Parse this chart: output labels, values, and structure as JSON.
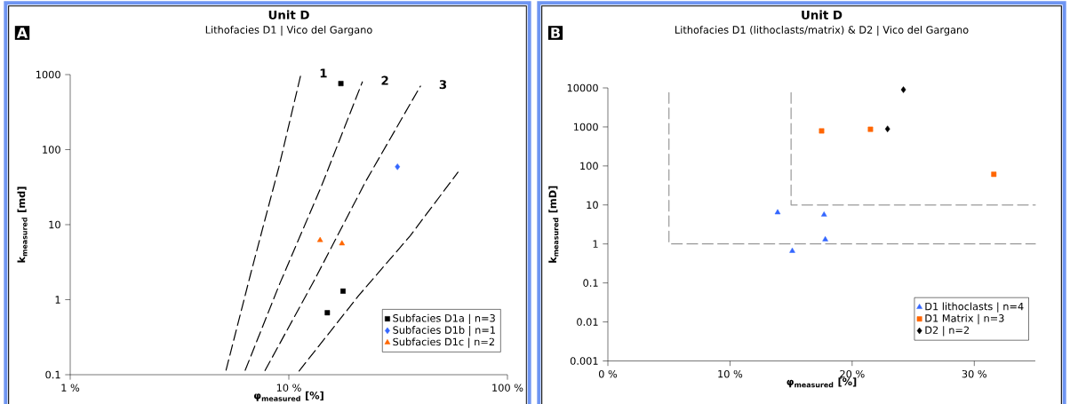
{
  "chart_data": [
    {
      "type": "scatter",
      "title": "Unit D",
      "subtitle": "Lithofacies D1 | Vico del Gargano",
      "xlabel": "φ$_{measured}$ [%]",
      "ylabel": "k$_{measured}$ [md]",
      "log": "xy",
      "xlim": [
        1,
        100
      ],
      "ylim": [
        0.1,
        1000
      ],
      "xticks": [
        {
          "value": 1,
          "label": "1 %"
        },
        {
          "value": 10,
          "label": "10 %"
        },
        {
          "value": 100,
          "label": "100 %"
        }
      ],
      "yticks": [
        0.1,
        1,
        10,
        100,
        1000
      ],
      "legend": "bottom right",
      "annotations": [
        "A",
        "1",
        "2",
        "3"
      ],
      "series": [
        {
          "name": "Subfacies D1a | n=3",
          "color": "#000000",
          "marker": "square",
          "x": [
            17.3,
            17.7,
            15.0
          ],
          "values": [
            760,
            1.3,
            0.67
          ]
        },
        {
          "name": "Subfacies D1b | n=1",
          "color": "#3366ff",
          "marker": "diamond",
          "x": [
            31.4
          ],
          "values": [
            59
          ]
        },
        {
          "name": "Subfacies D1c | n=2",
          "color": "#ff6600",
          "marker": "triangle",
          "x": [
            13.9,
            17.5
          ],
          "values": [
            6.2,
            5.6
          ]
        },
        {
          "type": "line",
          "color": "#000000",
          "line_style": "dashed",
          "marker": "none",
          "x": [
            5.1,
            6.7,
            9.0,
            11.35
          ],
          "values": [
            0.1,
            2.25,
            58,
            1000
          ]
        },
        {
          "type": "line",
          "color": "#000000",
          "line_style": "dashed",
          "marker": "none",
          "x": [
            6.2,
            9.1,
            14.1,
            21.7
          ],
          "values": [
            0.1,
            1.65,
            32.6,
            800
          ]
        },
        {
          "type": "line",
          "color": "#000000",
          "line_style": "dashed",
          "marker": "none",
          "x": [
            7.6,
            13.1,
            22.5,
            40
          ],
          "values": [
            0.1,
            1.83,
            38,
            703
          ]
        },
        {
          "type": "line",
          "color": "#000000",
          "line_style": "dashed",
          "marker": "none",
          "x": [
            10.8,
            20.9,
            35.9,
            59.4
          ],
          "values": [
            0.1,
            1.14,
            7.1,
            50
          ]
        }
      ]
    },
    {
      "type": "scatter",
      "title": "Unit D",
      "subtitle": "Lithofacies D1 (lithoclasts/matrix) & D2 | Vico del Gargano",
      "xlabel": "φ$_{measured}$ [%]",
      "ylabel": "k$_{measured}$ [mD]",
      "log": "y",
      "xlim": [
        0,
        35
      ],
      "ylim": [
        0.001,
        10000
      ],
      "xticks": [
        {
          "value": 0,
          "label": "0 %"
        },
        {
          "value": 10,
          "label": "10 %"
        },
        {
          "value": 20,
          "label": "20 %"
        },
        {
          "value": 30,
          "label": "30 %"
        }
      ],
      "yticks": [
        0.001,
        0.01,
        0.1,
        1,
        10,
        100,
        1000,
        10000
      ],
      "legend": "bottom right",
      "annotations": [
        "B"
      ],
      "series": [
        {
          "type": "line",
          "color": "#999999",
          "line_style": "dashed",
          "marker": "none",
          "x": [
            5,
            5,
            35
          ],
          "values": [
            10000,
            1,
            1
          ]
        },
        {
          "type": "line",
          "color": "#999999",
          "line_style": "dashed",
          "marker": "none",
          "x": [
            15,
            15,
            35
          ],
          "values": [
            10000,
            10,
            10
          ]
        },
        {
          "name": "D1 lithoclasts | n=4",
          "color": "#3366ff",
          "marker": "triangle",
          "x": [
            13.9,
            17.7,
            17.8,
            15.1
          ],
          "values": [
            6.4,
            5.6,
            1.3,
            0.66
          ]
        },
        {
          "name": "D1 Matrix | n=3",
          "color": "#ff6600",
          "marker": "square",
          "x": [
            17.5,
            21.5,
            31.6
          ],
          "values": [
            790,
            870,
            61
          ]
        },
        {
          "name": "D2 | n=2",
          "color": "#000000",
          "marker": "diamond",
          "x": [
            22.9,
            24.2
          ],
          "values": [
            890,
            9000
          ]
        }
      ]
    }
  ]
}
